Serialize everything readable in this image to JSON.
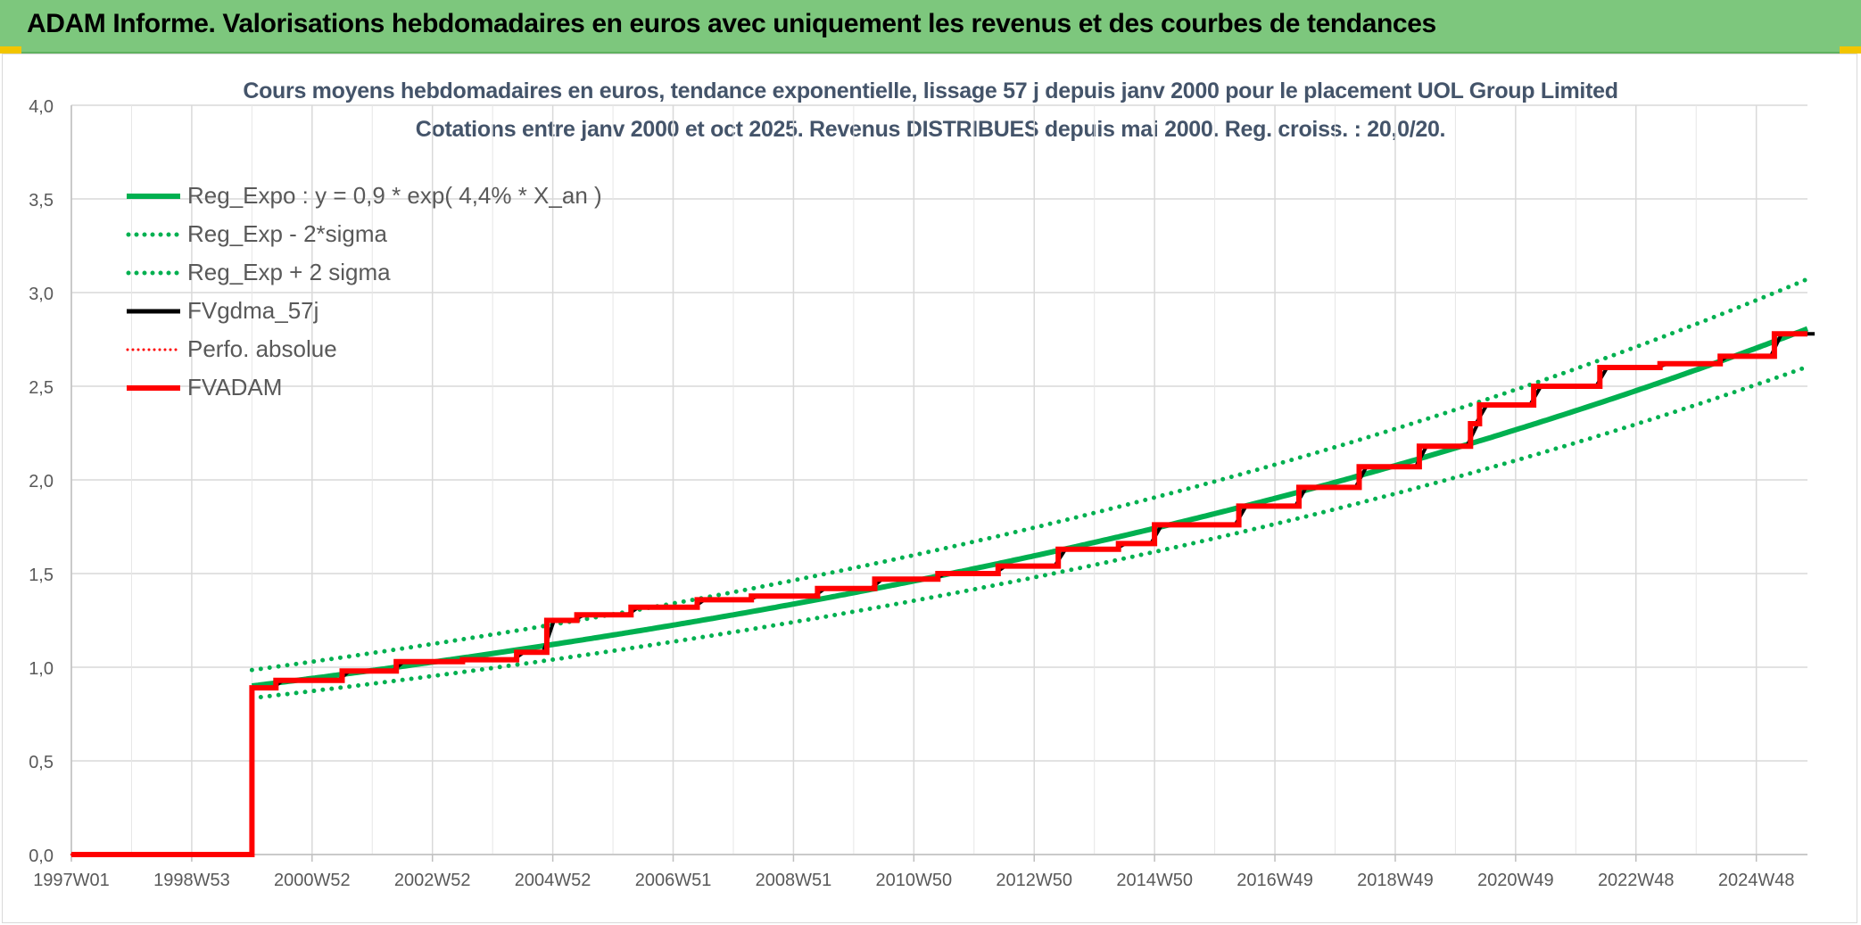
{
  "header": {
    "title": "ADAM Informe. Valorisations hebdomadaires en euros avec uniquement les revenus et des courbes de tendances"
  },
  "chart_data": {
    "type": "line",
    "title": "Cours moyens hebdomadaires en euros, tendance exponentielle, lissage 57 j depuis janv 2000 pour le placement UOL Group Limited",
    "subtitle": "Cotations entre janv 2000 et oct 2025. Revenus DISTRIBUES depuis mai 2000. Reg. croiss. : 20,0/20.",
    "xlabel": "",
    "ylabel": "",
    "ylim": [
      0,
      4
    ],
    "y_ticks": [
      "0,0",
      "0,5",
      "1,0",
      "1,5",
      "2,0",
      "2,5",
      "3,0",
      "3,5",
      "4,0"
    ],
    "x_range": [
      1997.0,
      2025.85
    ],
    "x_ticks": [
      {
        "label": "1997W01",
        "x": 1997.0
      },
      {
        "label": "1998W53",
        "x": 1999.0
      },
      {
        "label": "2000W52",
        "x": 2001.0
      },
      {
        "label": "2002W52",
        "x": 2003.0
      },
      {
        "label": "2004W52",
        "x": 2005.0
      },
      {
        "label": "2006W51",
        "x": 2007.0
      },
      {
        "label": "2008W51",
        "x": 2009.0
      },
      {
        "label": "2010W50",
        "x": 2011.0
      },
      {
        "label": "2012W50",
        "x": 2013.0
      },
      {
        "label": "2014W50",
        "x": 2015.0
      },
      {
        "label": "2016W49",
        "x": 2017.0
      },
      {
        "label": "2018W49",
        "x": 2019.0
      },
      {
        "label": "2020W49",
        "x": 2021.0
      },
      {
        "label": "2022W48",
        "x": 2023.0
      },
      {
        "label": "2024W48",
        "x": 2025.0
      }
    ],
    "grid": true,
    "legend_position": "top-left",
    "colors": {
      "green": "#00b050",
      "black": "#000000",
      "red": "#ff0000"
    },
    "series": [
      {
        "name": "Reg_Expo : y = 0,9 * exp( 4,4% *  X_an )",
        "style": "solid-green-thick",
        "x_start": 2000.0,
        "formula": "0.9*exp(0.044*t)"
      },
      {
        "name": "Reg_Exp - 2*sigma",
        "style": "dotted-green",
        "x_start": 2000.0,
        "formula": "0.835*exp(0.044*t)"
      },
      {
        "name": "Reg_Exp + 2 sigma",
        "style": "dotted-green",
        "x_start": 2000.0,
        "formula": "0.985*exp(0.044*t)"
      },
      {
        "name": "FVgdma_57j",
        "style": "solid-black"
      },
      {
        "name": "Perfo. absolue",
        "style": "dotted-red"
      },
      {
        "name": "FVADAM",
        "style": "solid-red-thick",
        "steps": [
          {
            "x": 1997.0,
            "y": 0.0
          },
          {
            "x": 2000.0,
            "y": 0.89
          },
          {
            "x": 2000.4,
            "y": 0.93
          },
          {
            "x": 2001.5,
            "y": 0.98
          },
          {
            "x": 2002.4,
            "y": 1.03
          },
          {
            "x": 2003.5,
            "y": 1.04
          },
          {
            "x": 2004.4,
            "y": 1.08
          },
          {
            "x": 2004.9,
            "y": 1.25
          },
          {
            "x": 2005.4,
            "y": 1.28
          },
          {
            "x": 2006.3,
            "y": 1.32
          },
          {
            "x": 2007.4,
            "y": 1.36
          },
          {
            "x": 2008.3,
            "y": 1.38
          },
          {
            "x": 2009.4,
            "y": 1.42
          },
          {
            "x": 2010.35,
            "y": 1.47
          },
          {
            "x": 2011.4,
            "y": 1.5
          },
          {
            "x": 2012.4,
            "y": 1.54
          },
          {
            "x": 2013.4,
            "y": 1.63
          },
          {
            "x": 2014.4,
            "y": 1.66
          },
          {
            "x": 2015.0,
            "y": 1.76
          },
          {
            "x": 2016.4,
            "y": 1.86
          },
          {
            "x": 2017.4,
            "y": 1.96
          },
          {
            "x": 2018.4,
            "y": 2.07
          },
          {
            "x": 2019.4,
            "y": 2.18
          },
          {
            "x": 2020.25,
            "y": 2.3
          },
          {
            "x": 2020.4,
            "y": 2.4
          },
          {
            "x": 2021.3,
            "y": 2.5
          },
          {
            "x": 2022.4,
            "y": 2.6
          },
          {
            "x": 2023.4,
            "y": 2.62
          },
          {
            "x": 2024.4,
            "y": 2.66
          },
          {
            "x": 2025.3,
            "y": 2.78
          },
          {
            "x": 2025.85,
            "y": 2.78
          }
        ]
      }
    ]
  }
}
